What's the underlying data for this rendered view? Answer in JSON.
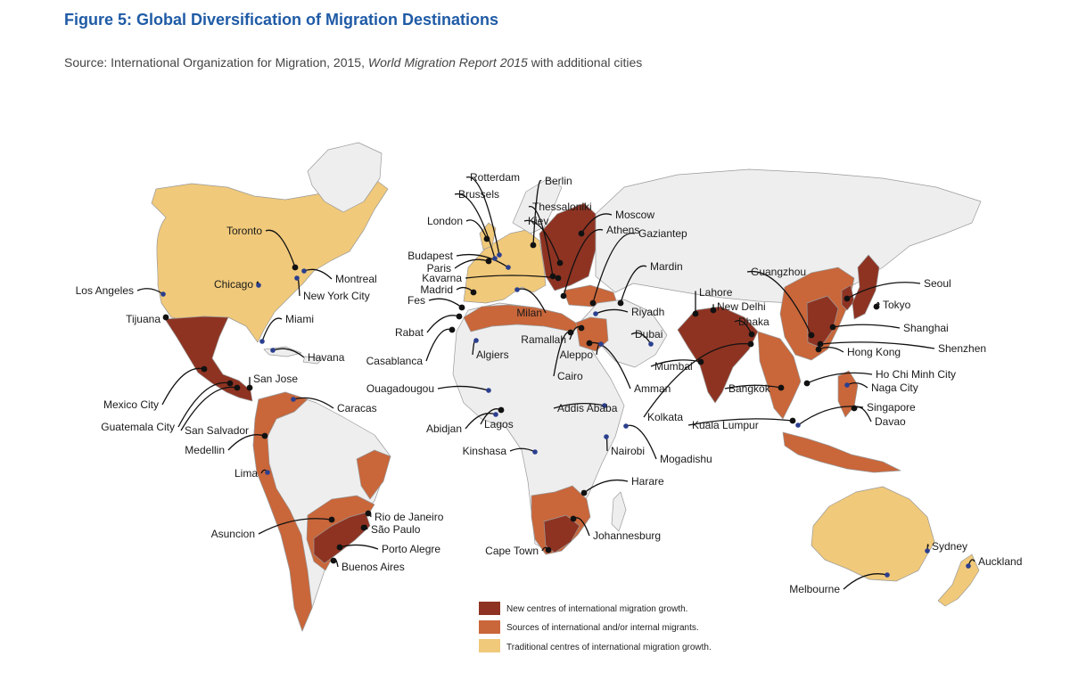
{
  "figure": {
    "title": "Figure 5: Global Diversification of Migration Destinations",
    "source_prefix": "Source: International Organization for Migration, 2015, ",
    "source_italic": "World Migration Report 2015",
    "source_suffix": " with additional cities"
  },
  "colors": {
    "new_centres": "#8e3322",
    "sources": "#c9663a",
    "traditional": "#f0c97a",
    "other_land": "#eeeeee",
    "coast": "#9a9a9a",
    "marker_dark": "#111111",
    "marker_blue": "#2b3f8f"
  },
  "legend": [
    {
      "key": "new_centres",
      "label": "New centres of international migration growth."
    },
    {
      "key": "sources",
      "label": "Sources of international and/or internal migrants."
    },
    {
      "key": "traditional",
      "label": "Traditional centres of international migration growth."
    }
  ],
  "cities": [
    {
      "name": "Los Angeles"
    },
    {
      "name": "Tijuana"
    },
    {
      "name": "Toronto"
    },
    {
      "name": "Chicago"
    },
    {
      "name": "Montreal"
    },
    {
      "name": "New York City"
    },
    {
      "name": "Miami"
    },
    {
      "name": "Havana"
    },
    {
      "name": "Mexico City"
    },
    {
      "name": "Guatemala City"
    },
    {
      "name": "San Salvador"
    },
    {
      "name": "San Jose"
    },
    {
      "name": "Caracas"
    },
    {
      "name": "Medellin"
    },
    {
      "name": "Lima"
    },
    {
      "name": "Asuncion"
    },
    {
      "name": "Rio de Janeiro"
    },
    {
      "name": "São Paulo"
    },
    {
      "name": "Porto Alegre"
    },
    {
      "name": "Buenos Aires"
    },
    {
      "name": "Rotterdam"
    },
    {
      "name": "Brussels"
    },
    {
      "name": "Berlin"
    },
    {
      "name": "London"
    },
    {
      "name": "Thessaloniki"
    },
    {
      "name": "Kiev"
    },
    {
      "name": "Moscow"
    },
    {
      "name": "Athens"
    },
    {
      "name": "Gaziantep"
    },
    {
      "name": "Budapest"
    },
    {
      "name": "Paris"
    },
    {
      "name": "Kavarna"
    },
    {
      "name": "Madrid"
    },
    {
      "name": "Fes"
    },
    {
      "name": "Mardin"
    },
    {
      "name": "Milan"
    },
    {
      "name": "Rabat"
    },
    {
      "name": "Casablanca"
    },
    {
      "name": "Algiers"
    },
    {
      "name": "Ramallah"
    },
    {
      "name": "Riyadh"
    },
    {
      "name": "Dubai"
    },
    {
      "name": "Aleppo"
    },
    {
      "name": "Cairo"
    },
    {
      "name": "Amman"
    },
    {
      "name": "Ouagadougou"
    },
    {
      "name": "Abidjan"
    },
    {
      "name": "Lagos"
    },
    {
      "name": "Addis Ababa"
    },
    {
      "name": "Kinshasa"
    },
    {
      "name": "Nairobi"
    },
    {
      "name": "Mogadishu"
    },
    {
      "name": "Harare"
    },
    {
      "name": "Johannesburg"
    },
    {
      "name": "Cape Town"
    },
    {
      "name": "Lahore"
    },
    {
      "name": "New Delhi"
    },
    {
      "name": "Dhaka"
    },
    {
      "name": "Mumbai"
    },
    {
      "name": "Kolkata"
    },
    {
      "name": "Bangkok"
    },
    {
      "name": "Kuala Lumpur"
    },
    {
      "name": "Guangzhou"
    },
    {
      "name": "Seoul"
    },
    {
      "name": "Tokyo"
    },
    {
      "name": "Shanghai"
    },
    {
      "name": "Shenzhen"
    },
    {
      "name": "Hong Kong"
    },
    {
      "name": "Ho Chi Minh City"
    },
    {
      "name": "Naga City"
    },
    {
      "name": "Singapore"
    },
    {
      "name": "Davao"
    },
    {
      "name": "Sydney"
    },
    {
      "name": "Melbourne"
    },
    {
      "name": "Auckland"
    }
  ]
}
